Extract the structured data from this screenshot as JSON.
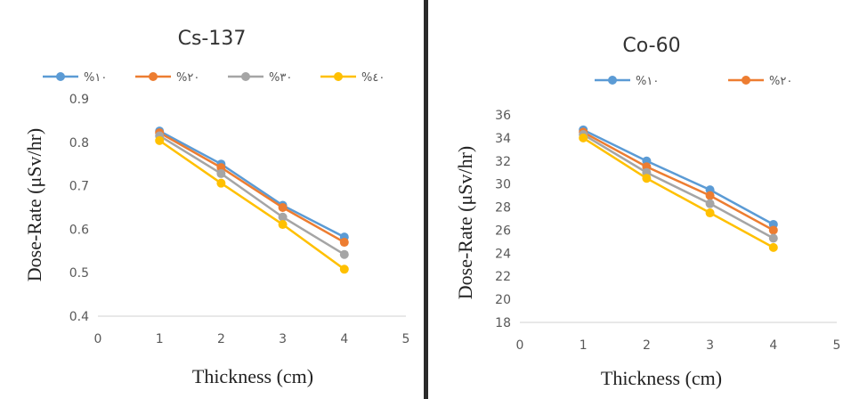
{
  "chart_data": [
    {
      "type": "line",
      "title": "Cs-137",
      "xlabel": "Thickness (cm)",
      "ylabel": "Dose-Rate (μSv/hr)",
      "xlim": [
        0,
        5
      ],
      "ylim": [
        0.4,
        0.9
      ],
      "xticks": [
        "0",
        "1",
        "2",
        "3",
        "4",
        "5"
      ],
      "yticks": [
        "0.4",
        "0.5",
        "0.6",
        "0.7",
        "0.8",
        "0.9"
      ],
      "yticks_values": [
        0.4,
        0.5,
        0.6,
        0.7,
        0.8,
        0.9
      ],
      "grid": false,
      "legend_position": "top",
      "x": [
        1,
        2,
        3,
        4
      ],
      "series": [
        {
          "name": "%١٠",
          "color": "#5B9BD5",
          "values": [
            0.826,
            0.75,
            0.655,
            0.582
          ]
        },
        {
          "name": "%٢٠",
          "color": "#ED7D31",
          "values": [
            0.822,
            0.742,
            0.65,
            0.57
          ]
        },
        {
          "name": "%٣٠",
          "color": "#A5A5A5",
          "values": [
            0.815,
            0.728,
            0.628,
            0.542
          ]
        },
        {
          "name": "%٤٠",
          "color": "#FFC000",
          "values": [
            0.804,
            0.706,
            0.611,
            0.508
          ]
        }
      ]
    },
    {
      "type": "line",
      "title": "Co-60",
      "xlabel": "Thickness (cm)",
      "ylabel": "Dose-Rate (μSv/hr)",
      "xlim": [
        0,
        5
      ],
      "ylim": [
        18,
        36
      ],
      "xticks": [
        "0",
        "1",
        "2",
        "3",
        "4",
        "5"
      ],
      "yticks": [
        "18",
        "20",
        "22",
        "24",
        "26",
        "28",
        "30",
        "32",
        "34",
        "36"
      ],
      "yticks_values": [
        18,
        20,
        22,
        24,
        26,
        28,
        30,
        32,
        34,
        36
      ],
      "grid": false,
      "legend_position": "top",
      "x": [
        1,
        2,
        3,
        4
      ],
      "series": [
        {
          "name": "%١٠",
          "color": "#5B9BD5",
          "values": [
            34.7,
            32.0,
            29.5,
            26.5
          ]
        },
        {
          "name": "%٢٠",
          "color": "#ED7D31",
          "values": [
            34.5,
            31.5,
            29.0,
            26.0
          ]
        },
        {
          "name": "",
          "color": "#A5A5A5",
          "values": [
            34.3,
            31.0,
            28.3,
            25.3
          ]
        },
        {
          "name": "",
          "color": "#FFC000",
          "values": [
            34.0,
            30.5,
            27.5,
            24.5
          ]
        }
      ]
    }
  ]
}
